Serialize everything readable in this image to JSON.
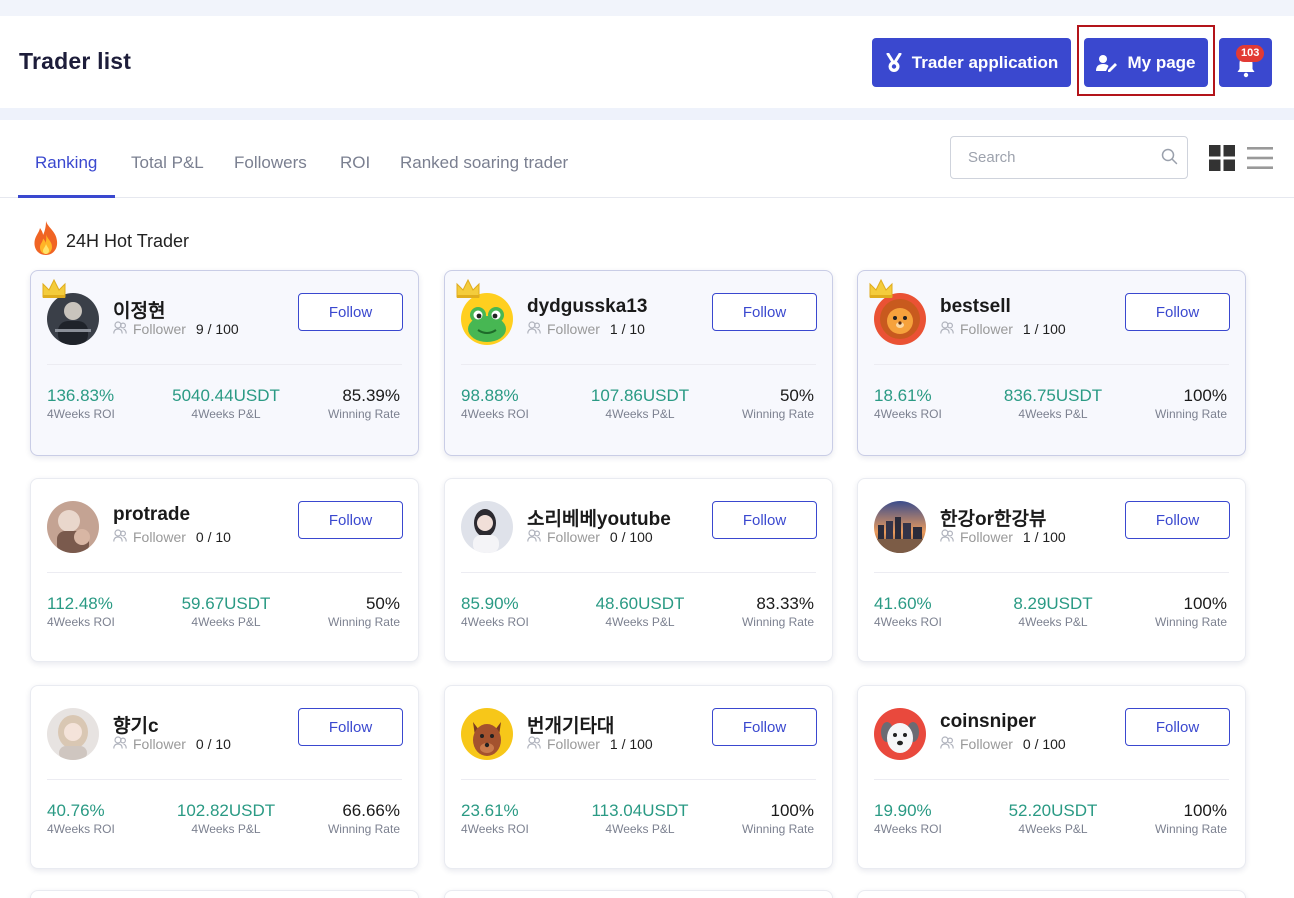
{
  "header": {
    "title": "Trader list",
    "trader_application_label": "Trader application",
    "my_page_label": "My page",
    "notification_count": "103"
  },
  "tabs": [
    {
      "label": "Ranking",
      "active": true
    },
    {
      "label": "Total P&L",
      "active": false
    },
    {
      "label": "Followers",
      "active": false
    },
    {
      "label": "ROI",
      "active": false
    },
    {
      "label": "Ranked soaring trader",
      "active": false
    }
  ],
  "search": {
    "placeholder": "Search",
    "value": ""
  },
  "section": {
    "title": "24H Hot Trader"
  },
  "labels": {
    "follow": "Follow",
    "follower": "Follower",
    "roi": "4Weeks ROI",
    "pnl": "4Weeks P&L",
    "win": "Winning Rate"
  },
  "colors": {
    "accent": "#3a48cf",
    "positive": "#2a9a84",
    "highlight": "#b3141a",
    "badge": "#e23a34"
  },
  "traders": [
    {
      "name": "이정현",
      "followers": "9 / 100",
      "roi": "136.83%",
      "pnl": "5040.44USDT",
      "win": "85.39%",
      "hot": true,
      "avatar": "dark-photo"
    },
    {
      "name": "dydgusska13",
      "followers": "1 / 10",
      "roi": "98.88%",
      "pnl": "107.86USDT",
      "win": "50%",
      "hot": true,
      "avatar": "frog"
    },
    {
      "name": "bestsell",
      "followers": "1 / 100",
      "roi": "18.61%",
      "pnl": "836.75USDT",
      "win": "100%",
      "hot": true,
      "avatar": "lion"
    },
    {
      "name": "protrade",
      "followers": "0 / 10",
      "roi": "112.48%",
      "pnl": "59.67USDT",
      "win": "50%",
      "hot": false,
      "avatar": "person-photo"
    },
    {
      "name": "소리베베youtube",
      "followers": "0 / 100",
      "roi": "85.90%",
      "pnl": "48.60USDT",
      "win": "83.33%",
      "hot": false,
      "avatar": "girl-photo"
    },
    {
      "name": "한강or한강뷰",
      "followers": "1 / 100",
      "roi": "41.60%",
      "pnl": "8.29USDT",
      "win": "100%",
      "hot": false,
      "avatar": "city-photo"
    },
    {
      "name": "향기c",
      "followers": "0 / 10",
      "roi": "40.76%",
      "pnl": "102.82USDT",
      "win": "66.66%",
      "hot": false,
      "avatar": "blonde-photo"
    },
    {
      "name": "번개기타대",
      "followers": "1 / 100",
      "roi": "23.61%",
      "pnl": "113.04USDT",
      "win": "100%",
      "hot": false,
      "avatar": "dog"
    },
    {
      "name": "coinsniper",
      "followers": "0 / 100",
      "roi": "19.90%",
      "pnl": "52.20USDT",
      "win": "100%",
      "hot": false,
      "avatar": "dog-white"
    }
  ]
}
